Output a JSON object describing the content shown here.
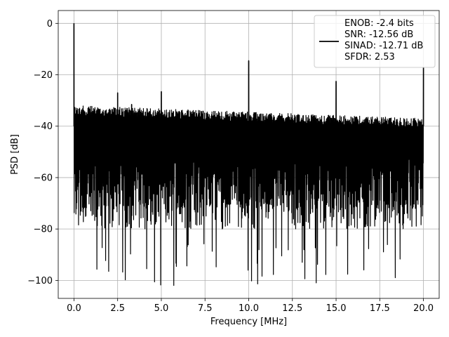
{
  "chart_data": {
    "type": "line",
    "xlabel": "Frequency [MHz]",
    "ylabel": "PSD [dB]",
    "xlim": [
      -0.9,
      20.9
    ],
    "ylim": [
      -107,
      5
    ],
    "xticks": [
      0.0,
      2.5,
      5.0,
      7.5,
      10.0,
      12.5,
      15.0,
      17.5,
      20.0
    ],
    "xtick_labels": [
      "0.0",
      "2.5",
      "5.0",
      "7.5",
      "10.0",
      "12.5",
      "15.0",
      "17.5",
      "20.0"
    ],
    "yticks": [
      0,
      -20,
      -40,
      -60,
      -80,
      -100
    ],
    "ytick_labels": [
      "0",
      "−20",
      "−40",
      "−60",
      "−80",
      "−100"
    ],
    "grid": true,
    "legend_position": "top-right",
    "legend_lines": [
      "ENOB: -2.4 bits",
      "SNR: -12.56 dB",
      "SINAD: -12.71 dB",
      "SFDR: 2.53"
    ],
    "series": [
      {
        "color": "#000000",
        "noise_floor": {
          "x_range": [
            0.0,
            20.0
          ],
          "upper_envelope_db": [
            -32,
            -37
          ],
          "lower_envelope_db": [
            -80,
            -80
          ],
          "min_db": -102.5
        },
        "spurs": [
          {
            "x": 0.0,
            "y": 0.0
          },
          {
            "x": 2.5,
            "y": -27.0
          },
          {
            "x": 3.3,
            "y": -31.5
          },
          {
            "x": 5.0,
            "y": -26.5
          },
          {
            "x": 10.0,
            "y": -14.5
          },
          {
            "x": 15.0,
            "y": -22.5
          },
          {
            "x": 20.0,
            "y": -17.0
          }
        ]
      }
    ]
  }
}
